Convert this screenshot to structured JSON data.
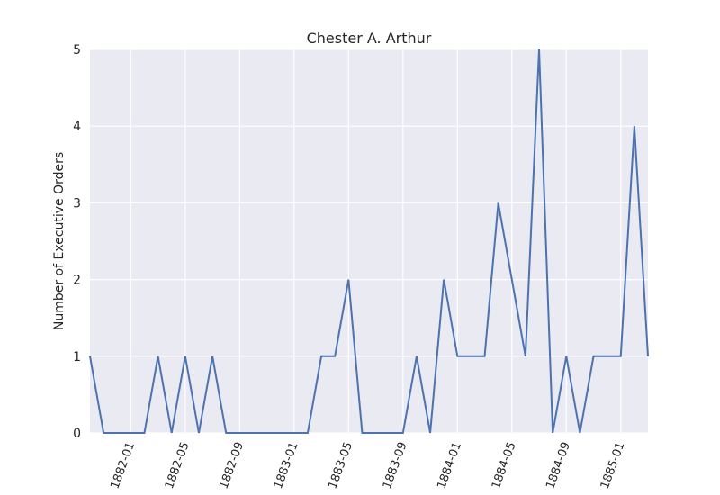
{
  "chart_data": {
    "type": "line",
    "title": "Chester A. Arthur",
    "xlabel": "",
    "ylabel": "Number of Executive Orders",
    "ylim": [
      0,
      5
    ],
    "xlim": [
      "1881-10",
      "1885-03"
    ],
    "x_ticks": [
      "1882-01",
      "1882-05",
      "1882-09",
      "1883-01",
      "1883-05",
      "1883-09",
      "1884-01",
      "1884-05",
      "1884-09",
      "1885-01"
    ],
    "y_ticks": [
      0,
      1,
      2,
      3,
      4,
      5
    ],
    "grid": true,
    "series": [
      {
        "x": [
          "1881-10",
          "1881-11",
          "1881-12",
          "1882-01",
          "1882-02",
          "1882-03",
          "1882-04",
          "1882-05",
          "1882-06",
          "1882-07",
          "1882-08",
          "1882-09",
          "1882-10",
          "1882-11",
          "1882-12",
          "1883-01",
          "1883-02",
          "1883-03",
          "1883-04",
          "1883-05",
          "1883-06",
          "1883-07",
          "1883-08",
          "1883-09",
          "1883-10",
          "1883-11",
          "1883-12",
          "1884-01",
          "1884-02",
          "1884-03",
          "1884-04",
          "1884-05",
          "1884-06",
          "1884-07",
          "1884-08",
          "1884-09",
          "1884-10",
          "1884-11",
          "1884-12",
          "1885-01",
          "1885-02",
          "1885-03"
        ],
        "values": [
          1,
          0,
          0,
          0,
          0,
          1,
          0,
          1,
          0,
          1,
          0,
          0,
          0,
          0,
          0,
          0,
          0,
          1,
          1,
          2,
          0,
          0,
          0,
          0,
          1,
          0,
          2,
          1,
          1,
          1,
          3,
          2,
          1,
          5,
          0,
          1,
          0,
          1,
          1,
          1,
          4,
          1
        ]
      }
    ]
  },
  "colors": {
    "plot_background": "#eaeaf2",
    "grid": "#ffffff",
    "line": "#4c72b0",
    "text": "#262626"
  }
}
